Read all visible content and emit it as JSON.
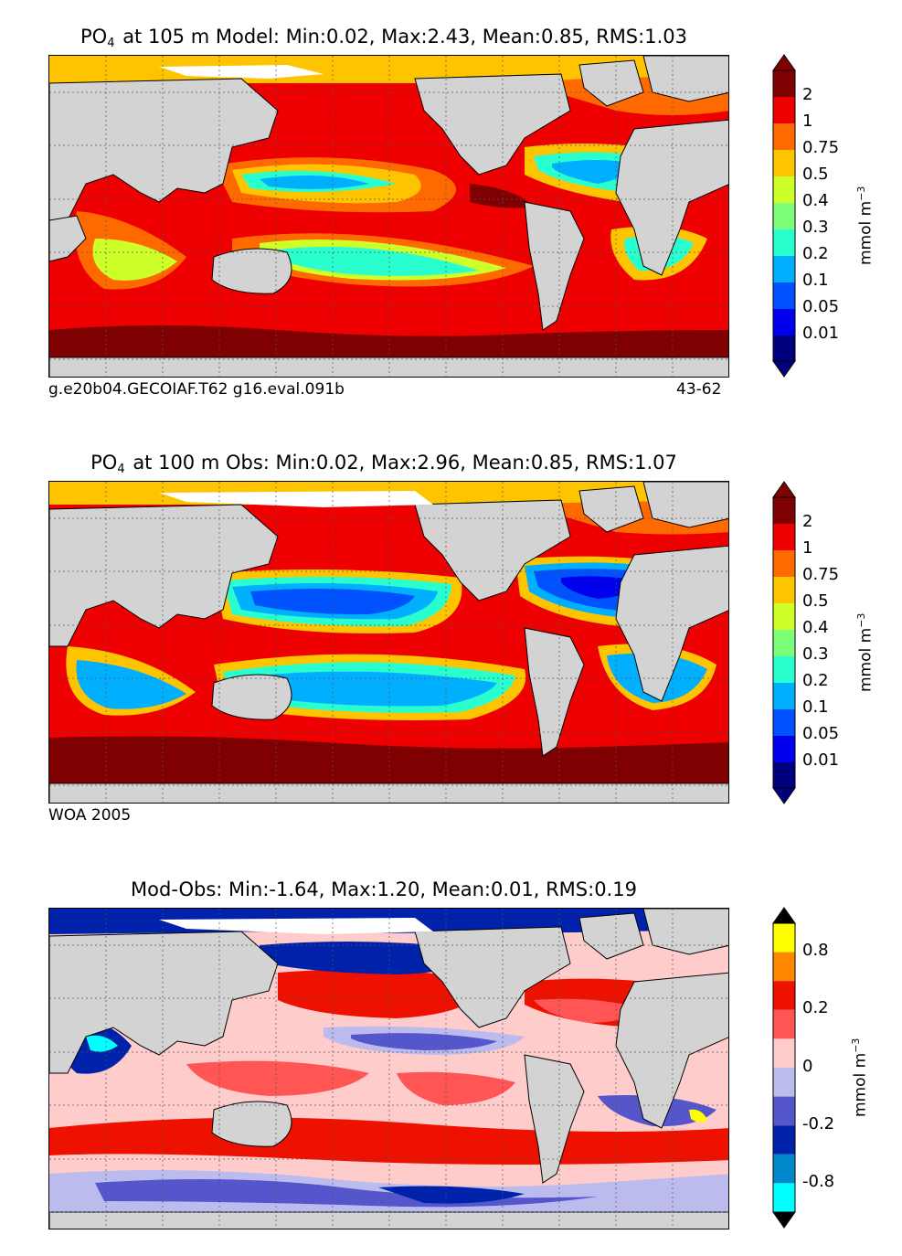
{
  "panels": [
    {
      "title_species": "PO",
      "title_sub": "4",
      "title_rest": "at 105 m Model: Min:0.02, Max:2.43, Mean:0.85, RMS:1.03",
      "caption_left": "g.e20b04.GECOIAF.T62 g16.eval.091b",
      "caption_right": "43-62",
      "colorbar_ticks": [
        "2",
        "1",
        "0.75",
        "0.5",
        "0.4",
        "0.3",
        "0.2",
        "0.1",
        "0.05",
        "0.01"
      ],
      "units_base": "mmol m",
      "units_exp": "−3"
    },
    {
      "title_species": "PO",
      "title_sub": "4",
      "title_rest": "at 100 m Obs: Min:0.02, Max:2.96, Mean:0.85, RMS:1.07",
      "caption_left": "WOA 2005",
      "colorbar_ticks": [
        "2",
        "1",
        "0.75",
        "0.5",
        "0.4",
        "0.3",
        "0.2",
        "0.1",
        "0.05",
        "0.01"
      ],
      "units_base": "mmol m",
      "units_exp": "−3"
    },
    {
      "title_full": "Mod-Obs: Min:-1.64, Max:1.20, Mean:0.01, RMS:0.19",
      "colorbar_ticks": [
        "0.8",
        "0.2",
        "0",
        "-0.2",
        "-0.8"
      ],
      "units_base": "mmol m",
      "units_exp": "−3"
    }
  ],
  "colors": {
    "po4_scale": [
      "#00007f",
      "#0000ec",
      "#0052ff",
      "#00b0ff",
      "#29ffce",
      "#7dff7a",
      "#ceff29",
      "#ffc400",
      "#ff6a00",
      "#ee0000",
      "#7f0000"
    ],
    "diff_scale": [
      "#00ffff",
      "#0088cc",
      "#0022aa",
      "#5555cc",
      "#bbbbee",
      "#ffcccc",
      "#ff5555",
      "#ee1100",
      "#ff8800",
      "#ffff00"
    ],
    "land": "#d3d3d3"
  }
}
